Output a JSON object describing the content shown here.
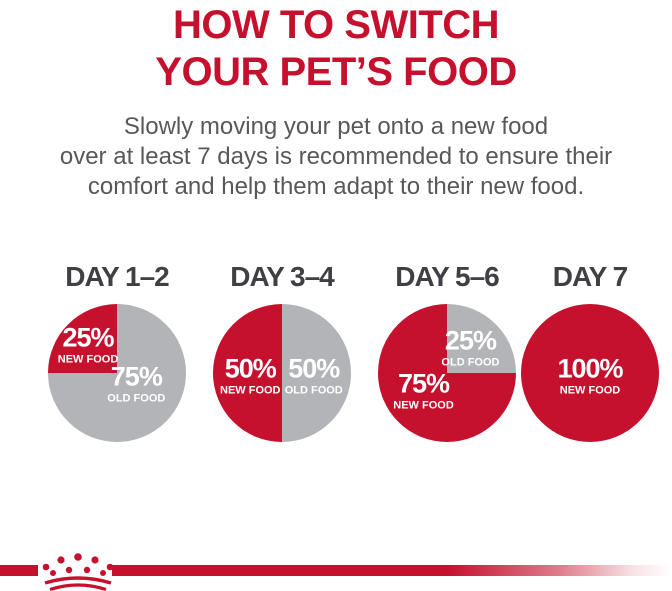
{
  "page": {
    "title_line1": "HOW TO SWITCH",
    "title_line2": "YOUR PET’S FOOD",
    "subtitle_lines": [
      "Slowly moving your pet onto a new food",
      "over at least 7 days is recommended to ensure their",
      "comfort and help them adapt to their new food."
    ]
  },
  "colors": {
    "brand_red": "#c5112e",
    "old_food_gray": "#b3b4b7",
    "body_text": "#58585a",
    "day_label": "#3f4043",
    "slice_label_text": "#ffffff"
  },
  "footer": {
    "logo": "royal-canin-crown-emblem"
  },
  "chart_data": [
    {
      "type": "pie",
      "title": "DAY 1–2",
      "start_angle_deg": 270,
      "slices": [
        {
          "name": "NEW FOOD",
          "value": 25,
          "pct_label": "25%",
          "color": "new_food",
          "label_pos": {
            "x": 29,
            "y": 30
          }
        },
        {
          "name": "OLD FOOD",
          "value": 75,
          "pct_label": "75%",
          "color": "old_food",
          "label_pos": {
            "x": 64,
            "y": 58
          }
        }
      ]
    },
    {
      "type": "pie",
      "title": "DAY 3–4",
      "start_angle_deg": 180,
      "slices": [
        {
          "name": "NEW FOOD",
          "value": 50,
          "pct_label": "50%",
          "color": "new_food",
          "label_pos": {
            "x": 27,
            "y": 52
          }
        },
        {
          "name": "OLD FOOD",
          "value": 50,
          "pct_label": "50%",
          "color": "old_food",
          "label_pos": {
            "x": 73,
            "y": 52
          }
        }
      ]
    },
    {
      "type": "pie",
      "title": "DAY 5–6",
      "start_angle_deg": 0,
      "slices": [
        {
          "name": "OLD FOOD",
          "value": 25,
          "pct_label": "25%",
          "color": "old_food",
          "label_pos": {
            "x": 67,
            "y": 32
          }
        },
        {
          "name": "NEW FOOD",
          "value": 75,
          "pct_label": "75%",
          "color": "new_food",
          "label_pos": {
            "x": 33,
            "y": 63
          }
        }
      ]
    },
    {
      "type": "pie",
      "title": "DAY 7",
      "start_angle_deg": 0,
      "slices": [
        {
          "name": "NEW FOOD",
          "value": 100,
          "pct_label": "100%",
          "color": "new_food",
          "label_pos": {
            "x": 50,
            "y": 52
          }
        }
      ]
    }
  ]
}
